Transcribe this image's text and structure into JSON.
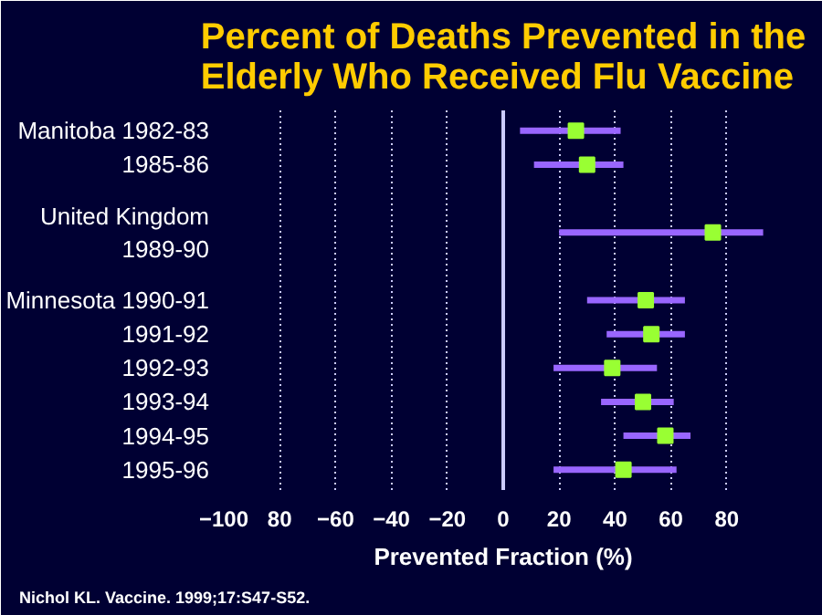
{
  "chart_data": {
    "type": "scatter",
    "orientation": "horizontal",
    "title": "Percent of Deaths Prevented in the\nElderly Who Received Flu Vaccine",
    "xlabel": "Prevented Fraction (%)",
    "categories": [
      "Manitoba 1982-83",
      "1985-86",
      null,
      "United Kingdom\n1989-90",
      null,
      "Minnesota 1990-91",
      "1991-92",
      "1992-93",
      "1993-94",
      "1994-95",
      "1995-96"
    ],
    "series": [
      {
        "color": "#99ff33",
        "values": [
          26,
          30,
          null,
          75,
          null,
          51,
          53,
          39,
          50,
          58,
          43
        ],
        "errors": [
          [
            6,
            42
          ],
          [
            11,
            43
          ],
          null,
          [
            20,
            93
          ],
          null,
          [
            30,
            65
          ],
          [
            37,
            65
          ],
          [
            18,
            55
          ],
          [
            35,
            61
          ],
          [
            43,
            67
          ],
          [
            18,
            62
          ]
        ]
      }
    ],
    "xlim": [
      -100,
      100
    ],
    "xticks": [
      -100,
      {
        "value": -80,
        "label": "80"
      },
      -60,
      -40,
      -20,
      0,
      20,
      40,
      60,
      80
    ],
    "ref_lines": [
      {
        "axis": "x",
        "value": 0,
        "color": "#ccccff"
      }
    ],
    "grid": "x",
    "marker": "square",
    "annotations": [
      "Nichol KL. Vaccine. 1999;17:S47-S52."
    ]
  }
}
